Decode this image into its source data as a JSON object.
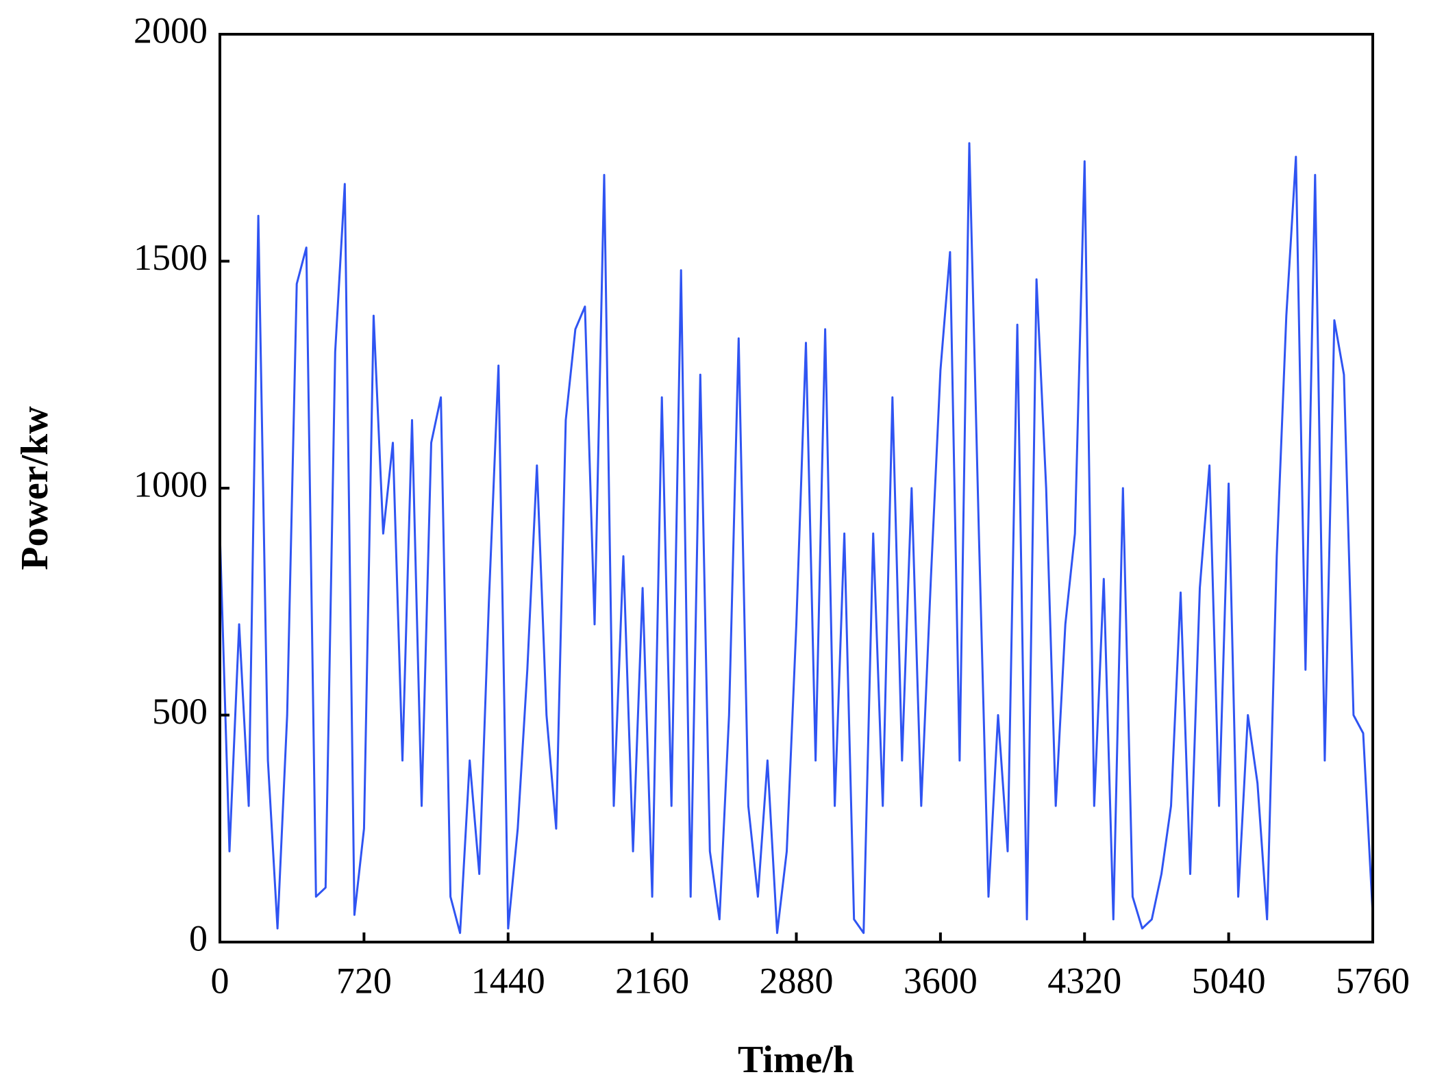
{
  "chart_data": {
    "type": "line",
    "xlabel": "Time/h",
    "ylabel": "Power/kw",
    "xlim": [
      0,
      5760
    ],
    "xticks": [
      0,
      720,
      1440,
      2160,
      2880,
      3600,
      4320,
      5040,
      5760
    ],
    "ylim": [
      0,
      2000
    ],
    "yticks": [
      0,
      500,
      1000,
      1500,
      2000
    ],
    "grid": false,
    "series": [
      {
        "color": "#2f54f2",
        "x": [
          0,
          48,
          96,
          144,
          192,
          240,
          288,
          336,
          384,
          432,
          480,
          528,
          576,
          624,
          672,
          720,
          768,
          816,
          864,
          912,
          960,
          1008,
          1056,
          1104,
          1152,
          1200,
          1248,
          1296,
          1344,
          1392,
          1440,
          1488,
          1536,
          1584,
          1632,
          1680,
          1728,
          1776,
          1824,
          1872,
          1920,
          1968,
          2016,
          2064,
          2112,
          2160,
          2208,
          2256,
          2304,
          2352,
          2400,
          2448,
          2496,
          2544,
          2592,
          2640,
          2688,
          2736,
          2784,
          2832,
          2880,
          2928,
          2976,
          3024,
          3072,
          3120,
          3168,
          3216,
          3264,
          3312,
          3360,
          3408,
          3456,
          3504,
          3552,
          3600,
          3648,
          3696,
          3744,
          3792,
          3840,
          3888,
          3936,
          3984,
          4032,
          4080,
          4128,
          4176,
          4224,
          4272,
          4320,
          4368,
          4416,
          4464,
          4512,
          4560,
          4608,
          4656,
          4704,
          4752,
          4800,
          4848,
          4896,
          4944,
          4992,
          5040,
          5088,
          5136,
          5184,
          5232,
          5280,
          5328,
          5376,
          5424,
          5472,
          5520,
          5568,
          5616,
          5664,
          5712,
          5760
        ],
        "values": [
          900,
          200,
          700,
          300,
          1600,
          400,
          30,
          500,
          1450,
          1530,
          100,
          120,
          1300,
          1670,
          60,
          250,
          1380,
          900,
          1100,
          400,
          1150,
          300,
          1100,
          1200,
          100,
          20,
          400,
          150,
          750,
          1270,
          30,
          250,
          600,
          1050,
          500,
          250,
          1150,
          1350,
          1400,
          700,
          1690,
          300,
          850,
          200,
          780,
          100,
          1200,
          300,
          1480,
          100,
          1250,
          200,
          50,
          500,
          1330,
          300,
          100,
          400,
          20,
          200,
          700,
          1320,
          400,
          1350,
          300,
          900,
          50,
          20,
          900,
          300,
          1200,
          400,
          1000,
          300,
          800,
          1260,
          1520,
          400,
          1760,
          900,
          100,
          500,
          200,
          1360,
          50,
          1460,
          1000,
          300,
          700,
          900,
          1720,
          300,
          800,
          50,
          1000,
          100,
          30,
          50,
          150,
          300,
          770,
          150,
          780,
          1050,
          300,
          1010,
          100,
          500,
          350,
          50,
          850,
          1380,
          1730,
          600,
          1690,
          400,
          1370,
          1250,
          500,
          460,
          60
        ]
      }
    ]
  }
}
